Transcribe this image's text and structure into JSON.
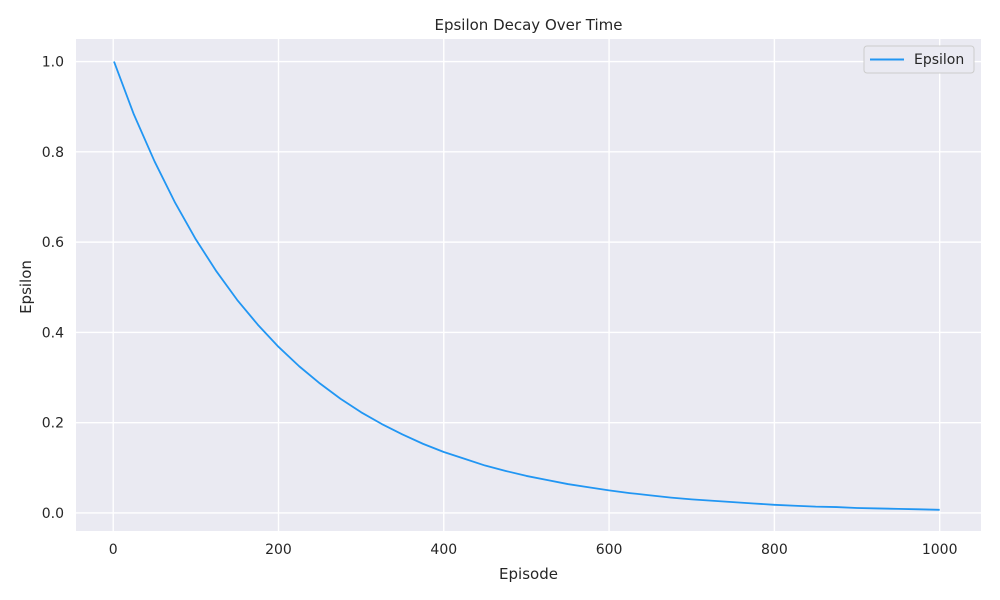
{
  "chart_data": {
    "type": "line",
    "title": "Epsilon Decay Over Time",
    "xlabel": "Episode",
    "ylabel": "Epsilon",
    "xlim": [
      -45,
      1050
    ],
    "ylim": [
      -0.04,
      1.05
    ],
    "xticks": [
      0,
      200,
      400,
      600,
      800,
      1000
    ],
    "yticks": [
      0.0,
      0.2,
      0.4,
      0.6,
      0.8,
      1.0
    ],
    "xtick_labels": [
      "0",
      "200",
      "400",
      "600",
      "800",
      "1000"
    ],
    "ytick_labels": [
      "0.0",
      "0.2",
      "0.4",
      "0.6",
      "0.8",
      "1.0"
    ],
    "grid": true,
    "legend": {
      "position": "top-right"
    },
    "series": [
      {
        "name": "Epsilon",
        "color": "#2196f3",
        "x": [
          1,
          25,
          50,
          75,
          100,
          125,
          150,
          175,
          200,
          225,
          250,
          275,
          300,
          325,
          350,
          375,
          400,
          425,
          450,
          475,
          500,
          525,
          550,
          575,
          600,
          625,
          650,
          675,
          700,
          725,
          750,
          775,
          800,
          825,
          850,
          875,
          900,
          925,
          950,
          975,
          1000
        ],
        "y": [
          1.0,
          0.883,
          0.779,
          0.687,
          0.606,
          0.535,
          0.472,
          0.417,
          0.368,
          0.325,
          0.287,
          0.253,
          0.223,
          0.197,
          0.174,
          0.153,
          0.135,
          0.12,
          0.105,
          0.093,
          0.082,
          0.073,
          0.064,
          0.057,
          0.05,
          0.044,
          0.039,
          0.034,
          0.03,
          0.027,
          0.024,
          0.021,
          0.018,
          0.016,
          0.014,
          0.013,
          0.011,
          0.01,
          0.009,
          0.008,
          0.007
        ]
      }
    ]
  }
}
